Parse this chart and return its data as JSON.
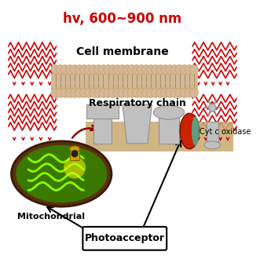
{
  "title": "hv, 600~900 nm",
  "title_color": "#cc0000",
  "bg_color": "#ffffff",
  "membrane_label": "Cell membrane",
  "respiratory_label": "Respiratory chain",
  "cytc_label": "Cyt c oxidase",
  "mitochondrial_label": "Mitochondrial",
  "photoacceptor_label": "Photoacceptor",
  "zigzag_color": "#cc0000",
  "bead_color": "#d4b896",
  "bead_edge": "#c8a060",
  "membrane_band": "#d4b896",
  "inner_band": "#c8a060",
  "gray_light": "#c0c0c0",
  "gray_dark": "#909090",
  "red_oval": "#cc2200",
  "teal": "#40c0a0",
  "mito_outer": "#5a3010",
  "mito_inner_dark": "#3a6800",
  "mito_inner_light": "#88dd00",
  "arrow_dark": "#8b0000"
}
